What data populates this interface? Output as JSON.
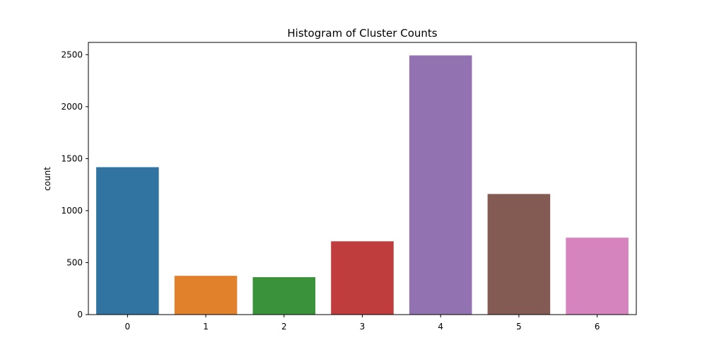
{
  "chart_data": {
    "type": "bar",
    "title": "Histogram of Cluster Counts",
    "xlabel": "",
    "ylabel": "count",
    "categories": [
      "0",
      "1",
      "2",
      "3",
      "4",
      "5",
      "6"
    ],
    "values": [
      1418,
      373,
      360,
      705,
      2493,
      1160,
      740
    ],
    "ylim": [
      0,
      2618
    ],
    "yticks": [
      0,
      500,
      1000,
      1500,
      2000,
      2500
    ],
    "grid": false,
    "legend": "none",
    "colors": [
      "#3274a1",
      "#e1812c",
      "#3a923a",
      "#c03d3e",
      "#9372b2",
      "#845b53",
      "#d684bd"
    ]
  }
}
